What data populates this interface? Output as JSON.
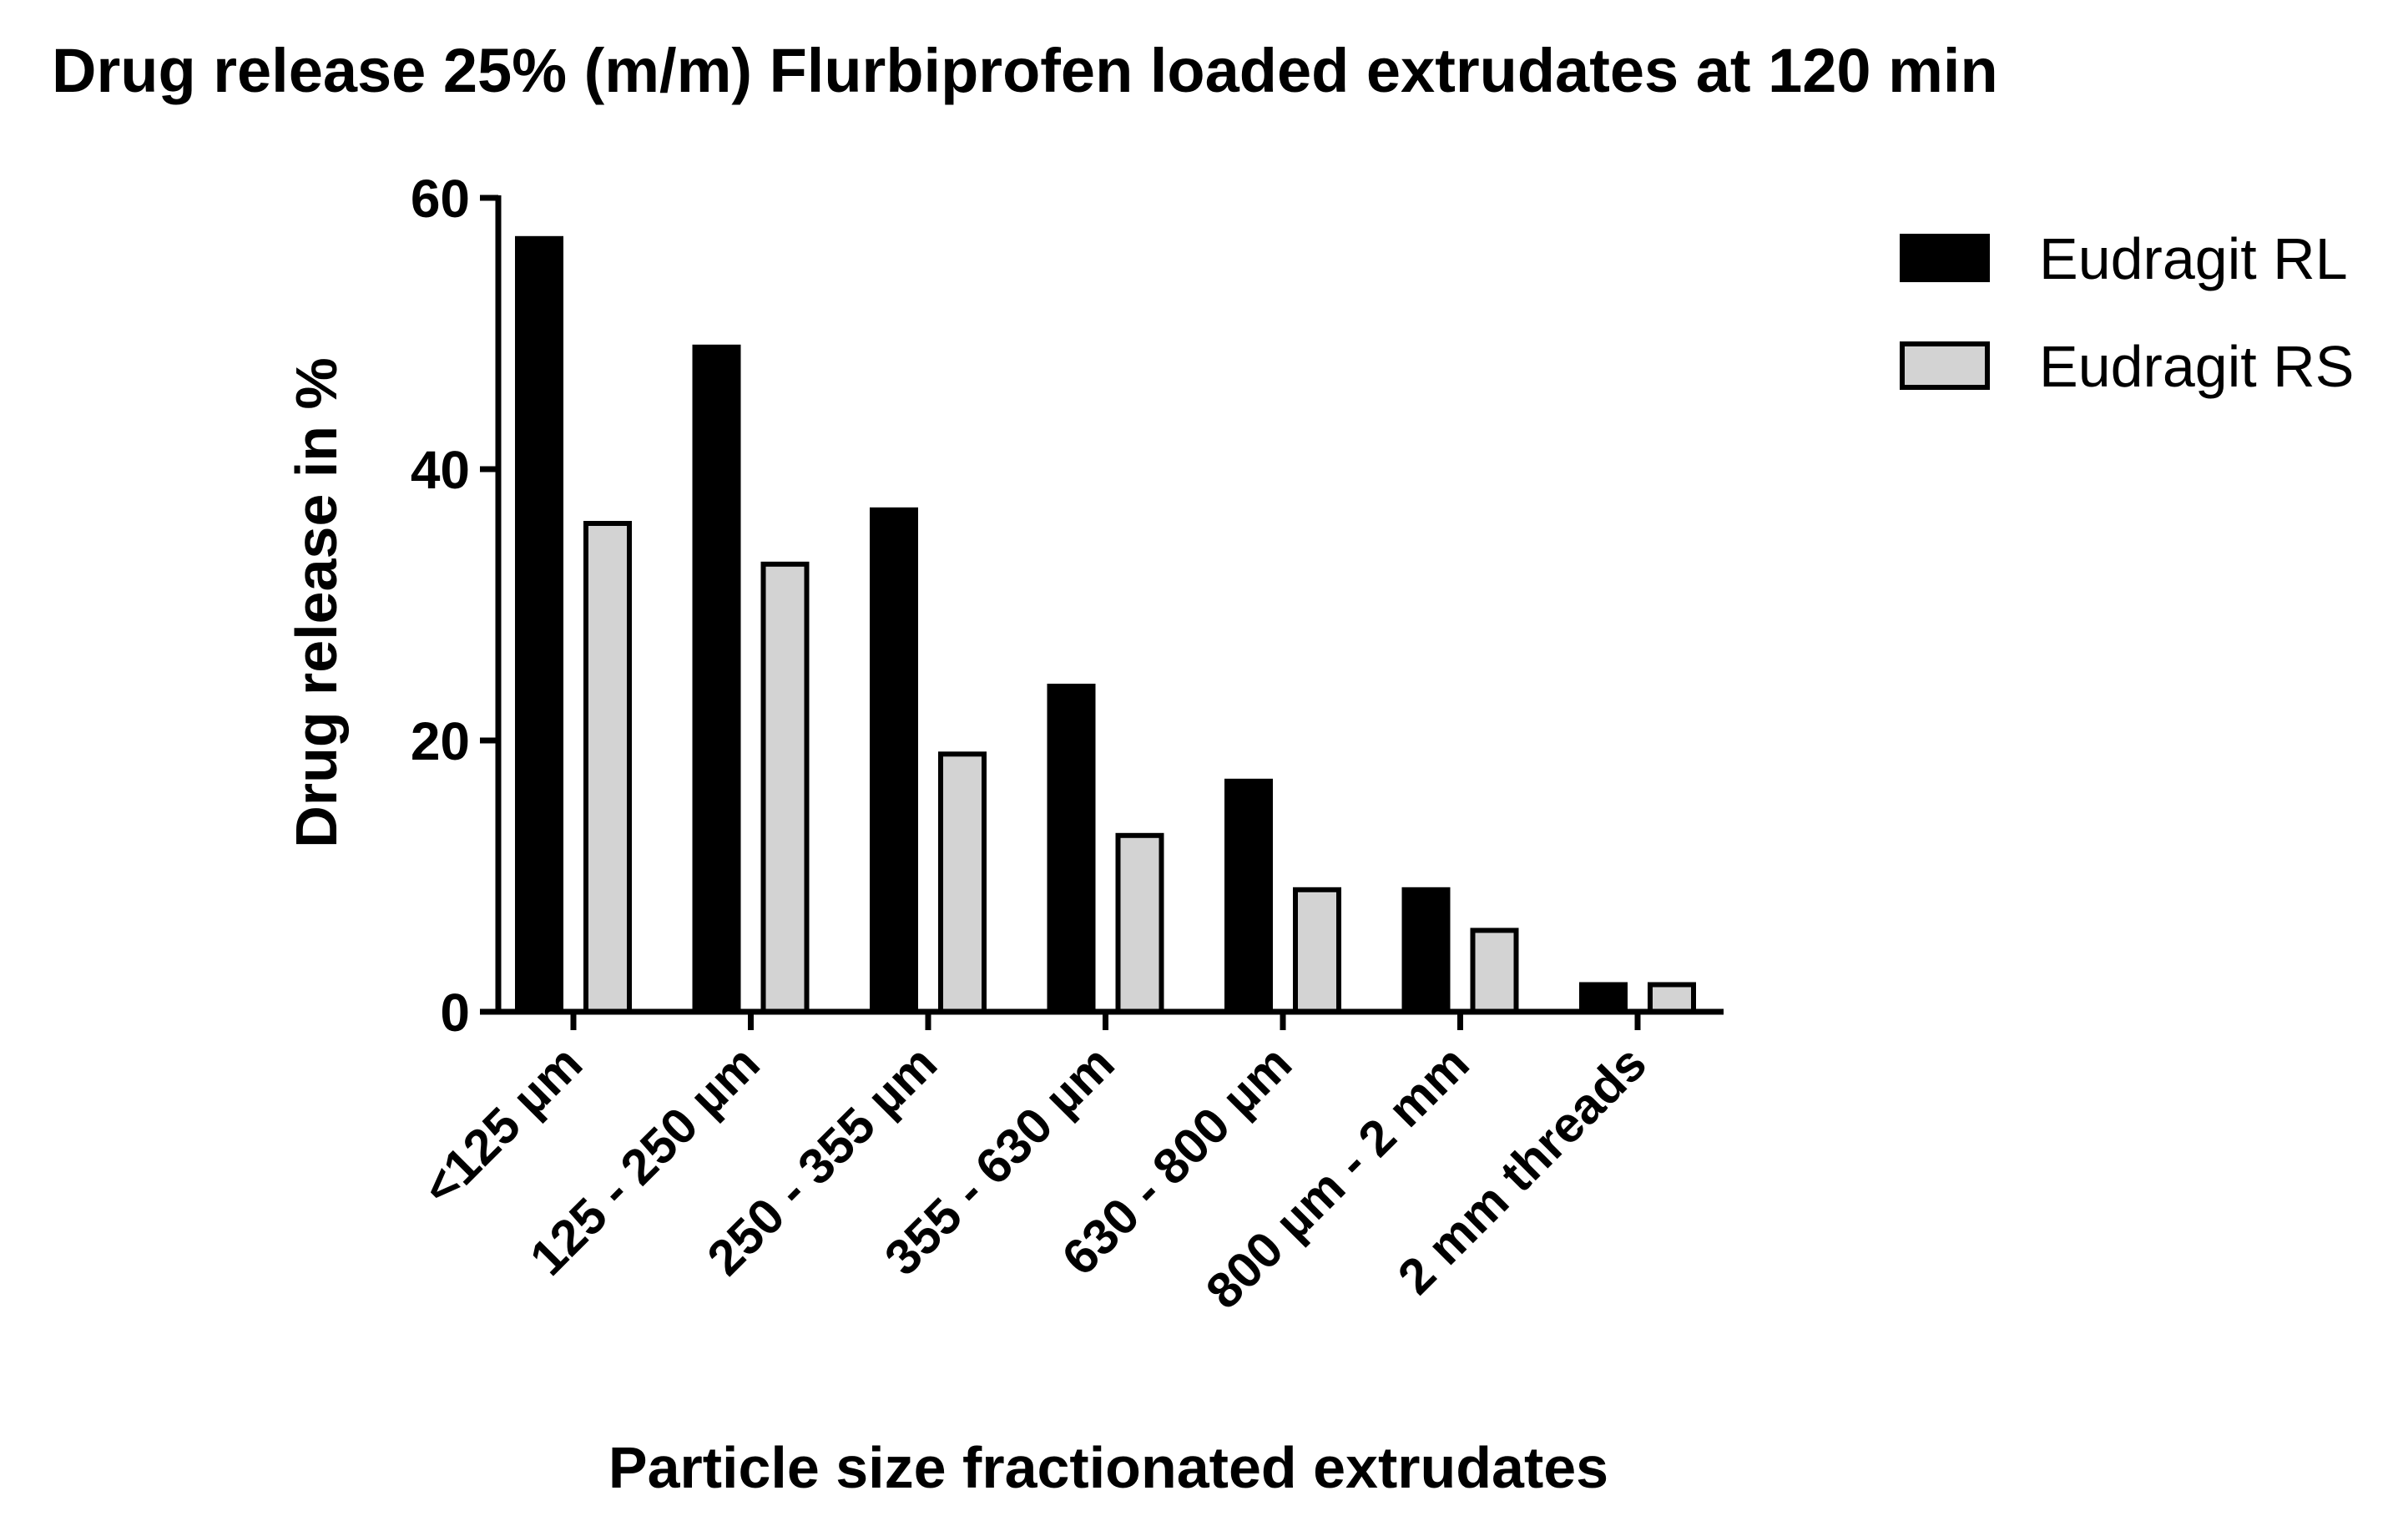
{
  "chart_data": {
    "type": "bar",
    "title": "Drug release 25% (m/m) Flurbiprofen loaded extrudates at 120 min",
    "xlabel": "Particle size fractionated extrudates",
    "ylabel": "Drug release in %",
    "ylim": [
      0,
      60
    ],
    "yticks": [
      0,
      20,
      40,
      60
    ],
    "ytick_labels": [
      "0",
      "20",
      "40",
      "60"
    ],
    "categories": [
      "<125 µm",
      "125 - 250 µm",
      "250 - 355 µm",
      "355 - 630 µm",
      "630 - 800 µm",
      "800 µm - 2 mm",
      "2 mm threads"
    ],
    "series": [
      {
        "name": "Eudragit RL",
        "color": "#000000",
        "values": [
          57,
          49,
          37,
          24,
          17,
          9,
          2
        ]
      },
      {
        "name": "Eudragit RS",
        "color": "#d3d3d3",
        "values": [
          36,
          33,
          19,
          13,
          9,
          6,
          2
        ]
      }
    ],
    "grid": false,
    "legend_position": "top-right"
  }
}
